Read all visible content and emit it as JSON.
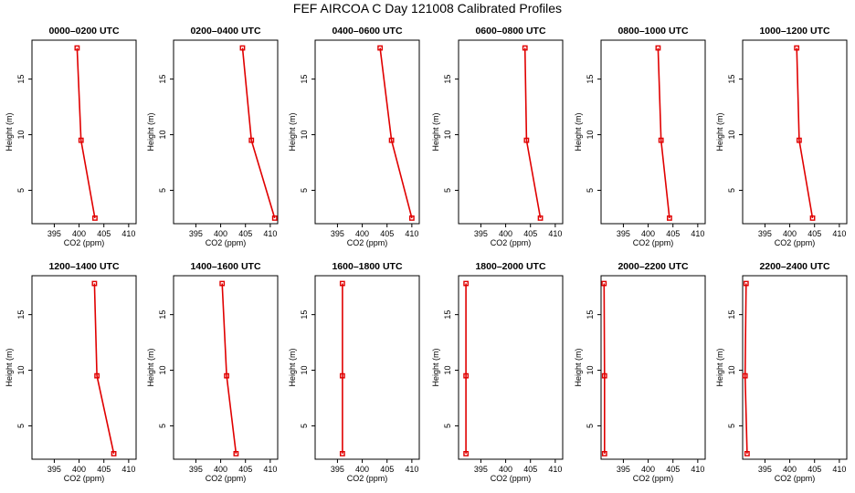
{
  "page": {
    "title": "FEF AIRCOA C  Day 121008  Calibrated Profiles"
  },
  "colors": {
    "series": "#e00000",
    "axes": "#000000",
    "background": "#ffffff"
  },
  "chart_data": {
    "type": "line",
    "shared_axes": {
      "xlabel": "CO2 (ppm)",
      "ylabel": "Height (m)",
      "xlim": [
        390.5,
        411.5
      ],
      "ylim": [
        2.0,
        18.5
      ],
      "xticks": [
        395,
        400,
        405,
        410
      ],
      "xtick_labels": [
        "395",
        "400",
        "405",
        "410"
      ],
      "yticks": [
        5,
        10,
        15
      ],
      "ytick_labels": [
        "5",
        "10",
        "15"
      ]
    },
    "heights": [
      17.8,
      9.5,
      2.5
    ],
    "panels": [
      {
        "title": "0000–0200 UTC",
        "co2": [
          399.6,
          400.4,
          403.2
        ]
      },
      {
        "title": "0200–0400 UTC",
        "co2": [
          404.4,
          406.2,
          410.9
        ]
      },
      {
        "title": "0400–0600 UTC",
        "co2": [
          403.6,
          405.9,
          410.0
        ]
      },
      {
        "title": "0600–0800 UTC",
        "co2": [
          403.9,
          404.2,
          407.0
        ]
      },
      {
        "title": "0800–1000 UTC",
        "co2": [
          402.0,
          402.6,
          404.3
        ]
      },
      {
        "title": "1000–1200 UTC",
        "co2": [
          401.4,
          401.9,
          404.6
        ]
      },
      {
        "title": "1200–1400 UTC",
        "co2": [
          403.1,
          403.6,
          407.0
        ]
      },
      {
        "title": "1400–1600 UTC",
        "co2": [
          400.3,
          401.2,
          403.1
        ]
      },
      {
        "title": "1600–1800 UTC",
        "co2": [
          396.0,
          396.0,
          396.0
        ]
      },
      {
        "title": "1800–2000 UTC",
        "co2": [
          392.0,
          392.0,
          392.0
        ]
      },
      {
        "title": "2000–2200 UTC",
        "co2": [
          391.1,
          391.2,
          391.2
        ]
      },
      {
        "title": "2200–2400 UTC",
        "co2": [
          391.2,
          391.0,
          391.4
        ]
      }
    ]
  }
}
